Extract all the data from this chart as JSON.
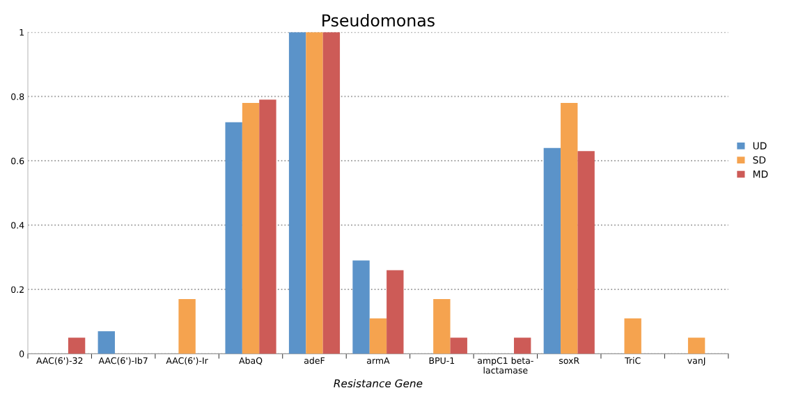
{
  "chart_data": {
    "type": "bar",
    "title": "Pseudomonas",
    "xlabel": "Resistance Gene",
    "categories": [
      "AAC(6')-32",
      "AAC(6')-Ib7",
      "AAC(6')-Ir",
      "AbaQ",
      "adeF",
      "armA",
      "BPU-1",
      "ampC1 beta-\nlactamase",
      "soxR",
      "TriC",
      "vanJ"
    ],
    "series": [
      {
        "name": "UD",
        "color": "#5b93c9",
        "values": [
          0,
          0.07,
          0,
          0.72,
          1,
          0.29,
          0,
          0,
          0.64,
          0,
          0
        ]
      },
      {
        "name": "SD",
        "color": "#f5a34f",
        "values": [
          0,
          0,
          0.17,
          0.78,
          1,
          0.11,
          0.17,
          0,
          0.78,
          0.11,
          0.05
        ]
      },
      {
        "name": "MD",
        "color": "#cd5b57",
        "values": [
          0.05,
          0,
          0,
          0.79,
          1,
          0.26,
          0.05,
          0.05,
          0.63,
          0,
          0
        ]
      }
    ],
    "ylim": [
      0,
      1
    ],
    "yticks": [
      0,
      0.2,
      0.4,
      0.6,
      0.8,
      1
    ],
    "grid": "y",
    "legend": "right"
  }
}
